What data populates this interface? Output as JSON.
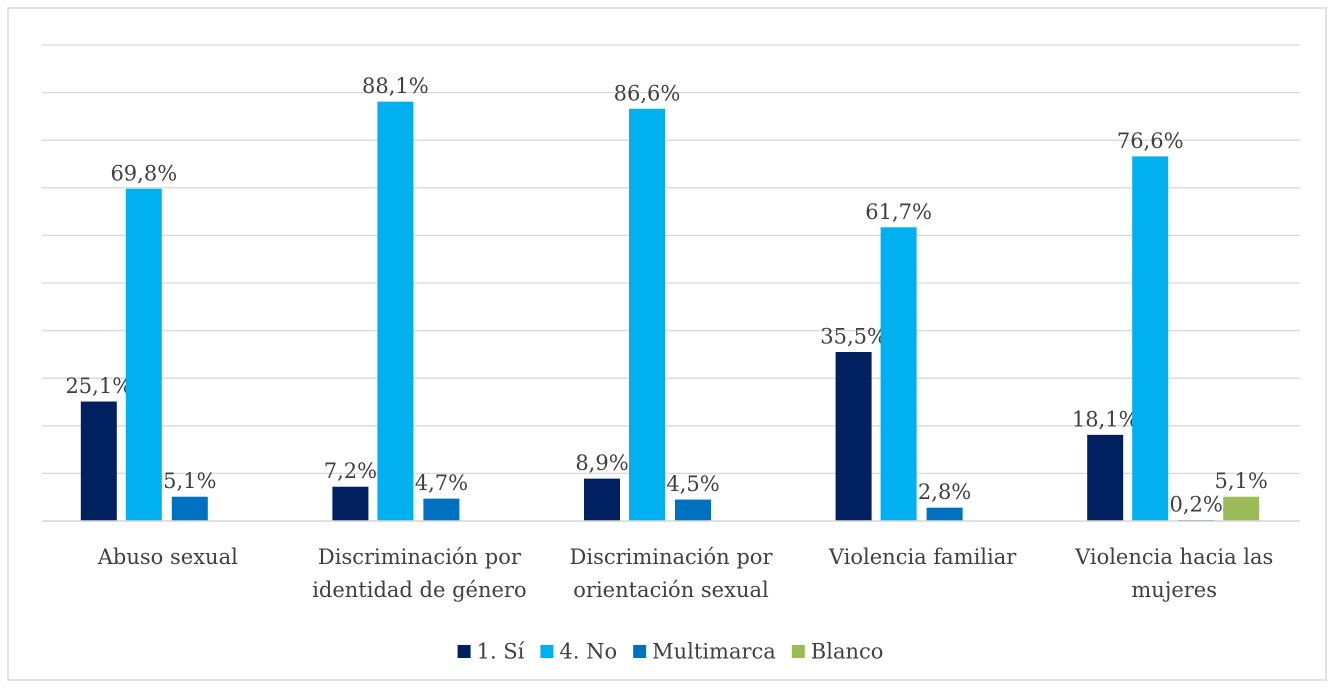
{
  "chart_data": {
    "type": "bar",
    "categories": [
      "Abuso sexual",
      "Discriminación por identidad de género",
      "Discriminación por orientación sexual",
      "Violencia familiar",
      "Violencia hacia las mujeres"
    ],
    "series": [
      {
        "name": "1. Sí",
        "color": "#002060",
        "values": [
          25.1,
          7.2,
          8.9,
          35.5,
          18.1
        ],
        "value_labels": [
          "25,1%",
          "7,2%",
          "8,9%",
          "35,5%",
          "18,1%"
        ]
      },
      {
        "name": "4. No",
        "color": "#00b0f0",
        "values": [
          69.8,
          88.1,
          86.6,
          61.7,
          76.6
        ],
        "value_labels": [
          "69,8%",
          "88,1%",
          "86,6%",
          "61,7%",
          "76,6%"
        ]
      },
      {
        "name": "Multimarca",
        "color": "#0070c0",
        "values": [
          5.1,
          4.7,
          4.5,
          2.8,
          0.2
        ],
        "value_labels": [
          "5,1%",
          "4,7%",
          "4,5%",
          "2,8%",
          "0,2%"
        ]
      },
      {
        "name": "Blanco",
        "color": "#9bbb59",
        "values": [
          null,
          null,
          null,
          null,
          5.1
        ],
        "value_labels": [
          null,
          null,
          null,
          null,
          "5,1%"
        ]
      }
    ],
    "ylim": [
      0,
      100
    ],
    "yticks": [
      0,
      10,
      20,
      30,
      40,
      50,
      60,
      70,
      80,
      90,
      100
    ],
    "grid": true,
    "legend": "bottom"
  }
}
